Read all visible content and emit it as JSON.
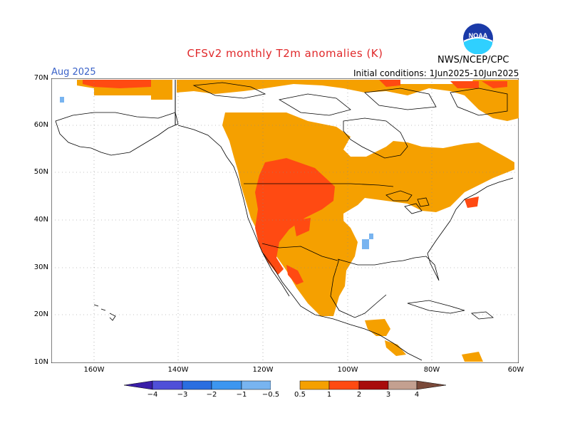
{
  "header": {
    "title": "CFSv2 monthly T2m anomalies (K)",
    "month": "Aug 2025",
    "initial_conditions": "Initial conditions: 1Jun2025-10Jun2025",
    "agency": "NWS/NCEP/CPC",
    "logo_text": "NOAA"
  },
  "map": {
    "lat_labels": [
      "70N",
      "60N",
      "50N",
      "40N",
      "30N",
      "20N",
      "10N"
    ],
    "lon_labels": [
      "160W",
      "140W",
      "120W",
      "100W",
      "80W",
      "60W"
    ],
    "grid": true,
    "colors": {
      "warm_0_5": "#f5a000",
      "warm_1": "#ff4a12",
      "warm_2": "#b50a0a",
      "cool_0_5": "#78b4f0",
      "land_outline": "#000000"
    }
  },
  "colorbar": {
    "labels": [
      "−4",
      "−3",
      "−2",
      "−1",
      "−0.5",
      "0.5",
      "1",
      "2",
      "3",
      "4"
    ],
    "colors": [
      "#3a1ea8",
      "#4f4fd8",
      "#2a6ee0",
      "#3c96f0",
      "#78b4f0",
      "#ffffff",
      "#f5a000",
      "#ff4a12",
      "#a80c0c",
      "#c4a090",
      "#7a4a3a"
    ]
  }
}
